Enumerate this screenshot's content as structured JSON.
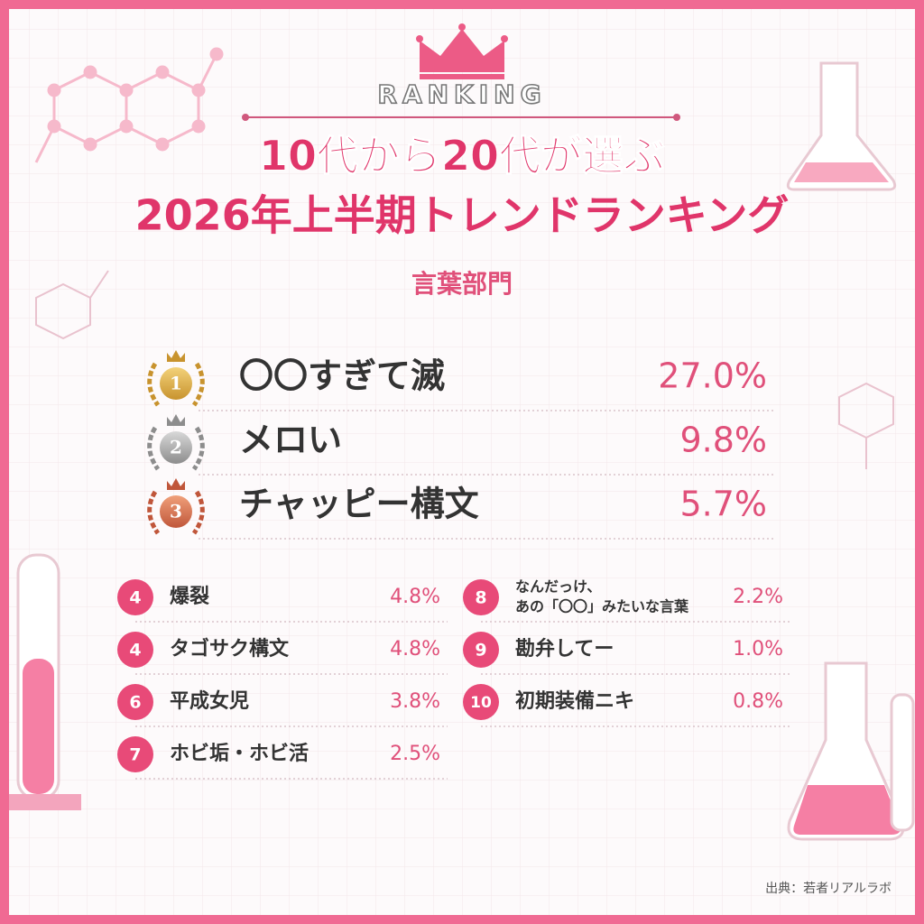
{
  "header": {
    "badge": "RANKING",
    "title_lines": [
      "10代から20代が選ぶ",
      "2026年上半期トレンドランキング"
    ],
    "category": "言葉部門"
  },
  "top_ranks": [
    {
      "rank": "1",
      "label": "〇〇すぎて滅",
      "percent": "27.0%"
    },
    {
      "rank": "2",
      "label": "メロい",
      "percent": "9.8%"
    },
    {
      "rank": "3",
      "label": "チャッピー構文",
      "percent": "5.7%"
    }
  ],
  "left_ranks": [
    {
      "rank": "4",
      "label": [
        "爆裂"
      ],
      "percent": "4.8%"
    },
    {
      "rank": "4",
      "label": [
        "タゴサク構文"
      ],
      "percent": "4.8%"
    },
    {
      "rank": "6",
      "label": [
        "平成女児"
      ],
      "percent": "3.8%"
    },
    {
      "rank": "7",
      "label": [
        "ホビ垢・ホビ活"
      ],
      "percent": "2.5%"
    }
  ],
  "right_ranks": [
    {
      "rank": "8",
      "label": [
        "なんだっけ、",
        "あの「〇〇」みたいな言葉"
      ],
      "percent": "2.2%"
    },
    {
      "rank": "9",
      "label": [
        "勘弁してー"
      ],
      "percent": "1.0%"
    },
    {
      "rank": "10",
      "label": [
        "初期装備ニキ"
      ],
      "percent": "0.8%"
    }
  ],
  "source": "出典：若者リアルラボ"
}
